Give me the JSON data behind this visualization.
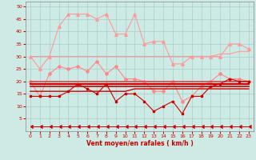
{
  "xlabel": "Vent moyen/en rafales ( km/h )",
  "background_color": "#cdeae4",
  "grid_color": "#aacccc",
  "x": [
    0,
    1,
    2,
    3,
    4,
    5,
    6,
    7,
    8,
    9,
    10,
    11,
    12,
    13,
    14,
    15,
    16,
    17,
    18,
    19,
    20,
    21,
    22,
    23
  ],
  "series": [
    {
      "name": "rafales_max",
      "color": "#ff9999",
      "lw": 0.8,
      "marker": "^",
      "ms": 2.5,
      "data": [
        30,
        25,
        30,
        42,
        47,
        47,
        47,
        45,
        47,
        39,
        39,
        47,
        35,
        36,
        36,
        27,
        27,
        30,
        30,
        30,
        30,
        35,
        35,
        33
      ]
    },
    {
      "name": "rafales_flat",
      "color": "#ff9999",
      "lw": 0.8,
      "marker": null,
      "ms": 0,
      "data": [
        30,
        30,
        30,
        30,
        30,
        30,
        30,
        30,
        30,
        30,
        30,
        30,
        30,
        30,
        30,
        30,
        30,
        30,
        30,
        30,
        31,
        31,
        32,
        32
      ]
    },
    {
      "name": "vent_gust_mid",
      "color": "#ff8888",
      "lw": 0.8,
      "marker": "D",
      "ms": 2,
      "data": [
        20,
        14,
        23,
        26,
        25,
        26,
        24,
        28,
        23,
        26,
        21,
        21,
        20,
        16,
        16,
        20,
        12,
        14,
        18,
        20,
        23,
        21,
        21,
        20
      ]
    },
    {
      "name": "vent_flat_upper",
      "color": "#dd4444",
      "lw": 1.2,
      "marker": null,
      "ms": 0,
      "data": [
        20,
        20,
        20,
        20,
        20,
        20,
        20,
        20,
        20,
        20,
        20,
        20,
        20,
        20,
        20,
        20,
        20,
        20,
        20,
        20,
        20,
        20,
        20,
        20
      ]
    },
    {
      "name": "vent_flat_mid",
      "color": "#cc0000",
      "lw": 1.5,
      "marker": null,
      "ms": 0,
      "data": [
        19,
        19,
        19,
        19,
        19,
        19,
        19,
        19,
        19,
        19,
        19,
        19,
        19,
        19,
        19,
        19,
        19,
        19,
        19,
        19,
        19,
        19,
        19,
        19
      ]
    },
    {
      "name": "vent_flat_lower",
      "color": "#cc0000",
      "lw": 1.2,
      "marker": null,
      "ms": 0,
      "data": [
        18,
        18,
        18,
        18,
        18,
        18,
        18,
        18,
        18,
        18,
        18,
        18,
        18,
        18,
        18,
        18,
        18,
        18,
        18,
        18,
        18,
        18,
        18,
        18
      ]
    },
    {
      "name": "vent_actual",
      "color": "#cc0000",
      "lw": 0.8,
      "marker": "s",
      "ms": 2,
      "data": [
        14,
        14,
        14,
        14,
        16,
        19,
        17,
        15,
        19,
        12,
        15,
        15,
        12,
        8,
        10,
        12,
        7,
        14,
        14,
        18,
        19,
        21,
        20,
        20
      ]
    },
    {
      "name": "vent_lower2",
      "color": "#cc0000",
      "lw": 1.0,
      "marker": null,
      "ms": 0,
      "data": [
        16,
        16,
        16,
        16,
        16,
        16,
        16,
        16,
        16,
        16,
        16,
        17,
        17,
        17,
        17,
        17,
        17,
        17,
        17,
        17,
        17,
        17,
        17,
        17
      ]
    },
    {
      "name": "arrow_line",
      "color": "#cc0000",
      "lw": 0.7,
      "marker": 4,
      "ms": 3,
      "data": [
        2,
        2,
        2,
        2,
        2,
        2,
        2,
        2,
        2,
        2,
        2,
        2,
        2,
        2,
        2,
        2,
        2,
        2,
        2,
        2,
        2,
        2,
        2,
        2
      ]
    }
  ],
  "ylim": [
    0,
    52
  ],
  "xlim": [
    -0.5,
    23.5
  ],
  "yticks": [
    5,
    10,
    15,
    20,
    25,
    30,
    35,
    40,
    45,
    50
  ],
  "xticks": [
    0,
    1,
    2,
    3,
    4,
    5,
    6,
    7,
    8,
    9,
    10,
    11,
    12,
    13,
    14,
    15,
    16,
    17,
    18,
    19,
    20,
    21,
    22,
    23
  ]
}
